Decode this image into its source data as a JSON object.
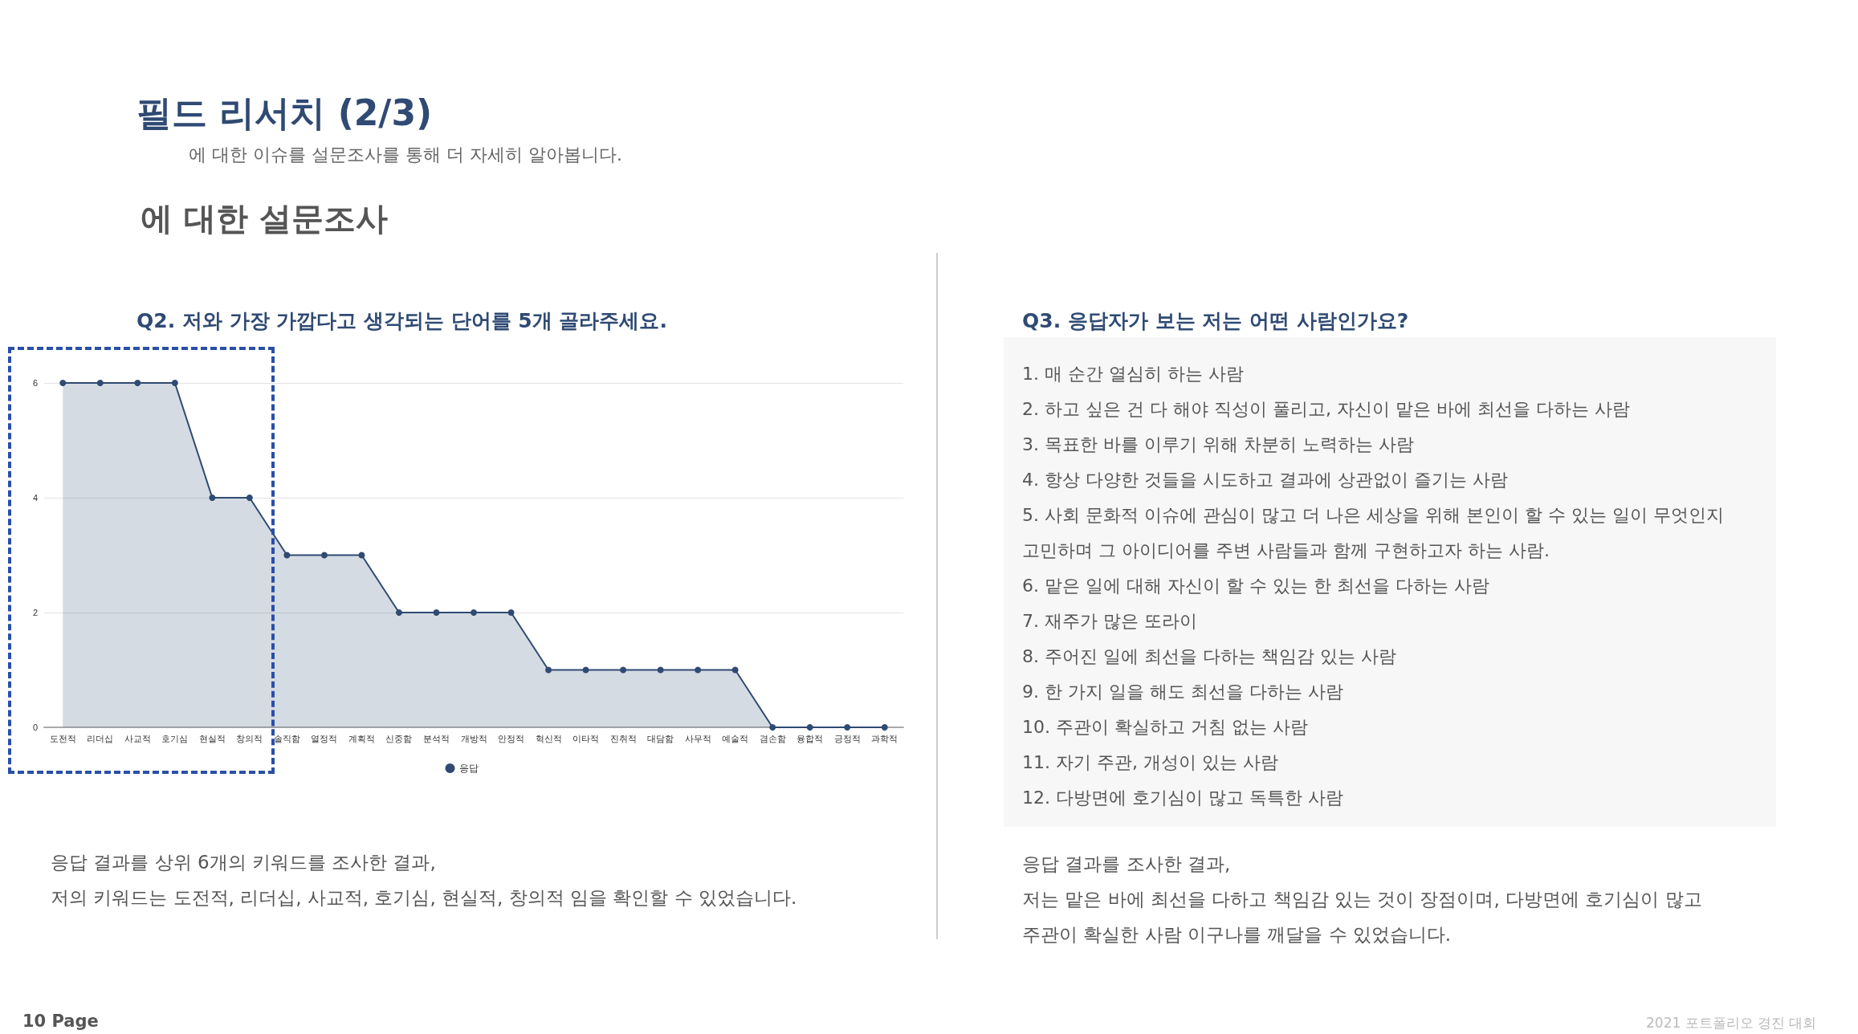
{
  "chart_data": {
    "type": "area",
    "title": "필드 리서치 (2/3)",
    "subtitle": "에 대한 이슈를 설문조사를 통해 더 자세히 알아봅니다.",
    "categories": [
      "도전적",
      "리더십",
      "사교적",
      "호기심",
      "현실적",
      "창의적",
      "솔직함",
      "열정적",
      "계획적",
      "신중함",
      "분석적",
      "개방적",
      "안정적",
      "혁신적",
      "이타적",
      "진취적",
      "대담함",
      "사무적",
      "예술적",
      "겸손함",
      "융합적",
      "긍정적",
      "과학적"
    ],
    "series": [
      {
        "name": "응답",
        "color": "#2f4a73",
        "values": [
          6,
          6,
          6,
          6,
          4,
          4,
          3,
          3,
          3,
          2,
          2,
          2,
          2,
          1,
          1,
          1,
          1,
          1,
          1,
          0,
          0,
          0,
          0
        ]
      }
    ],
    "ylim": [
      0,
      6
    ],
    "yticks": [
      0,
      2,
      4,
      6
    ],
    "grid": "y",
    "legend": "bottom",
    "marker": "circle",
    "annotations": [
      "에 대한 설문조사",
      "Q2. 저와 가장 가깝다고 생각되는 단어를 5개 골라주세요.",
      "응답 결과를 상위 6개의 키워드를 조사한 결과,",
      "저의 키워드는 도전적, 리더십, 사교적, 호기심, 현실적, 창의적 임을 확인할 수 있었습니다.",
      "Q3. 응답자가 보는 저는 어떤 사람인가요?",
      "1. 매 순간 열심히 하는 사람",
      "2. 하고 싶은 건 다 해야 직성이 풀리고, 자신이 맡은 바에 최선을 다하는 사람",
      "3. 목표한 바를 이루기 위해 차분히 노력하는 사람",
      "4. 항상 다양한 것들을 시도하고 결과에 상관없이 즐기는 사람",
      "5. 사회 문화적 이슈에 관심이 많고 더 나은 세상을 위해 본인이 할 수 있는 일이 무엇인지 고민하며 그 아이디어를 주변 사람들과 함께 구현하고자 하는 사람.",
      "6. 맡은 일에 대해 자신이 할 수 있는 한 최선을 다하는 사람",
      "7. 재주가 많은 또라이",
      "8. 주어진 일에 최선을 다하는 책임감 있는 사람",
      "9. 한 가지 일을 해도 최선을 다하는 사람",
      "10. 주관이 확실하고 거침 없는 사람",
      "11. 자기 주관, 개성이 있는 사람",
      "12. 다방면에 호기심이 많고 독특한 사람",
      "응답 결과를 조사한 결과,",
      "저는 맡은 바에 최선을 다하고 책임감 있는 것이 장점이며, 다방면에 호기심이 많고 주관이 확실한 사람 이구나를 깨달을 수 있었습니다.",
      "10 Page",
      "2021 포트폴리오 경진 대회"
    ]
  }
}
